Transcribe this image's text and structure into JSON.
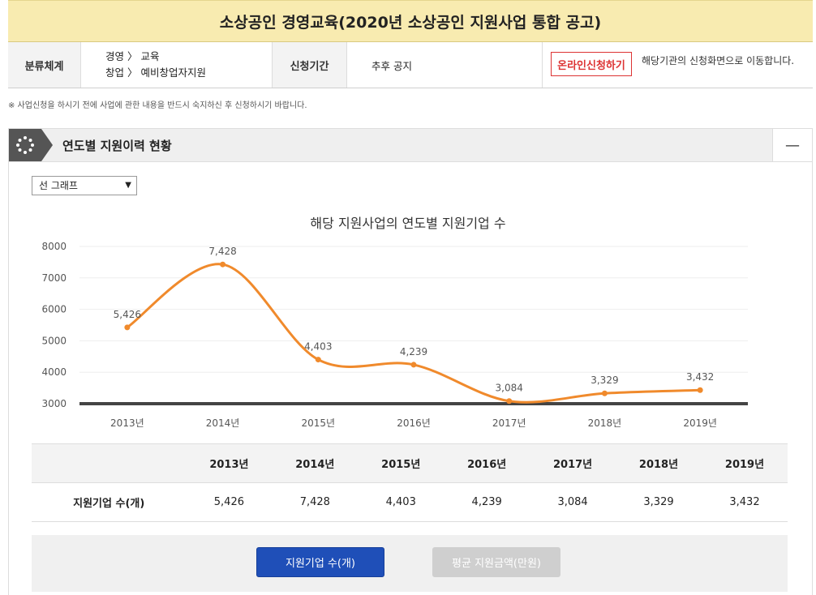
{
  "header": {
    "title": "소상공인 경영교육(2020년 소상공인 지원사업 통합 공고)"
  },
  "info": {
    "category_label": "분류체계",
    "category_line1": "경영 〉 교육",
    "category_line2": "창업 〉 예비창업자지원",
    "period_label": "신청기간",
    "period_value": "추후 공지",
    "apply_button": "온라인신청하기",
    "apply_note": "해당기관의 신청화면으로 이동합니다."
  },
  "notice": "※ 사업신청을 하시기 전에 사업에 관한 내용을 반드시 숙지하신 후 신청하시기 바랍니다.",
  "section": {
    "title": "연도별 지원이력 현황",
    "collapse": "—"
  },
  "chart_select": {
    "value": "선 그래프",
    "caret": "▼"
  },
  "chart_data": {
    "type": "line",
    "title": "해당 지원사업의 연도별 지원기업 수",
    "categories": [
      "2013년",
      "2014년",
      "2015년",
      "2016년",
      "2017년",
      "2018년",
      "2019년"
    ],
    "values": [
      5426,
      7428,
      4403,
      4239,
      3084,
      3329,
      3432
    ],
    "data_labels": [
      "5,426",
      "7,428",
      "4,403",
      "4,239",
      "3,084",
      "3,329",
      "3,432"
    ],
    "y_ticks": [
      "8000",
      "7000",
      "6000",
      "5000",
      "4000",
      "3000"
    ],
    "ylim": [
      3000,
      8000
    ],
    "line_color": "#f08a2c",
    "grid": true
  },
  "table": {
    "headers": [
      "",
      "2013년",
      "2014년",
      "2015년",
      "2016년",
      "2017년",
      "2018년",
      "2019년"
    ],
    "row_label": "지원기업 수(개)",
    "row_values": [
      "5,426",
      "7,428",
      "4,403",
      "4,239",
      "3,084",
      "3,329",
      "3,432"
    ]
  },
  "tabs": {
    "active": "지원기업 수(개)",
    "inactive": "평균 지원금액(만원)"
  },
  "colors": {
    "title_bg": "#f8ebb0",
    "accent_red": "#dd3333",
    "accent_blue": "#1f4fb8"
  }
}
